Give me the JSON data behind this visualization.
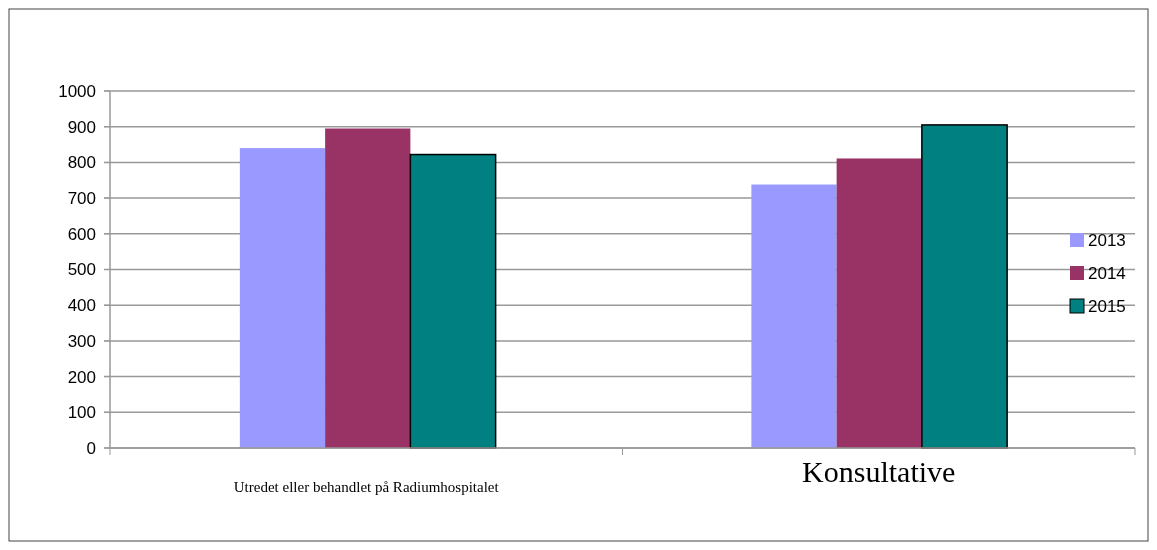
{
  "chart_data": {
    "type": "bar",
    "categories": [
      "Utredet eller behandlet på Radiumhospitalet",
      "Konsultative"
    ],
    "series": [
      {
        "name": "2013",
        "color": "#9999ff",
        "values": [
          840,
          738
        ]
      },
      {
        "name": "2014",
        "color": "#993366",
        "values": [
          895,
          811
        ]
      },
      {
        "name": "2015",
        "color": "#008080",
        "values": [
          822,
          905
        ]
      }
    ],
    "ylim": [
      0,
      1000
    ],
    "yticks": [
      0,
      100,
      200,
      300,
      400,
      500,
      600,
      700,
      800,
      900,
      1000
    ],
    "grid": "y",
    "legend": "right"
  }
}
